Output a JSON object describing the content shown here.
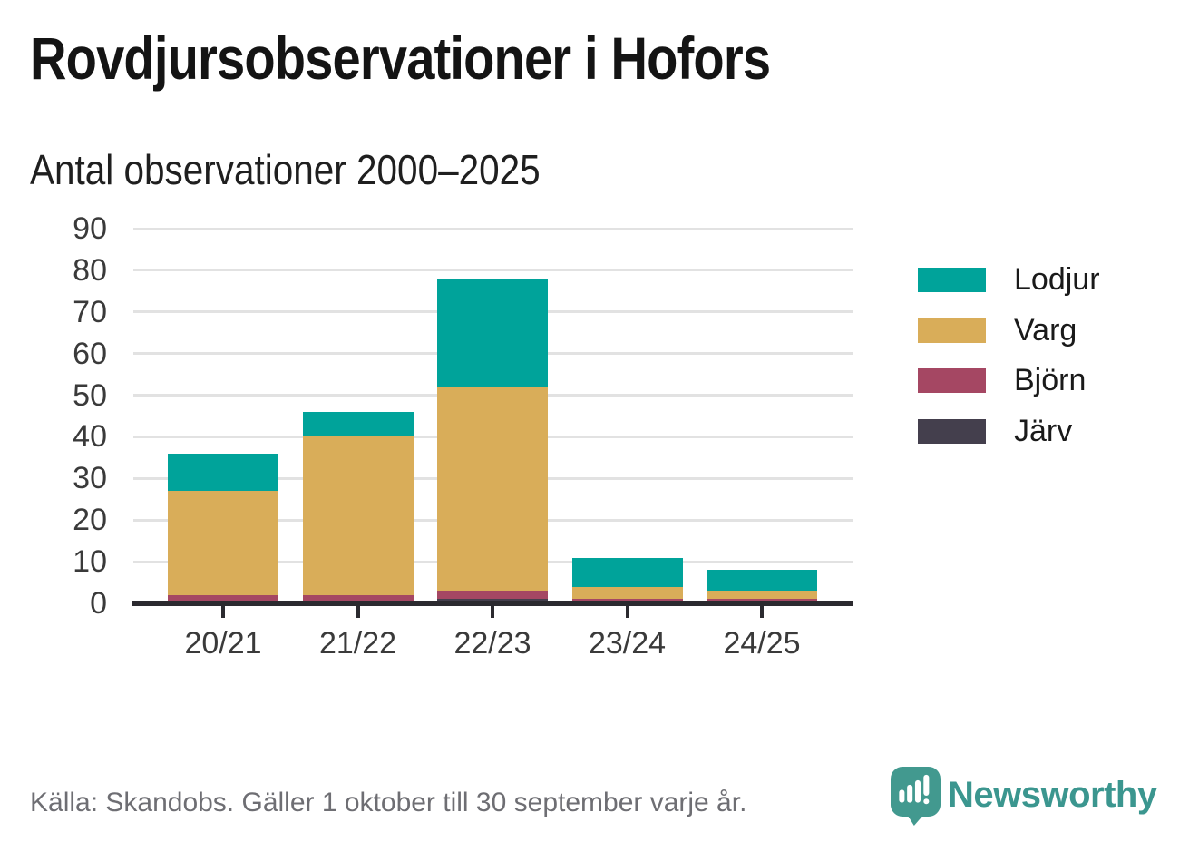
{
  "header": {
    "title": "Rovdjursobservationer i Hofors",
    "subtitle": "Antal observationer 2000–2025"
  },
  "chart_data": {
    "type": "bar",
    "stacked": true,
    "title": "Rovdjursobservationer i Hofors",
    "subtitle": "Antal observationer 2000–2025",
    "categories": [
      "20/21",
      "21/22",
      "22/23",
      "23/24",
      "24/25"
    ],
    "series": [
      {
        "name": "Lodjur",
        "color": "#00a39a",
        "values": [
          9,
          6,
          26,
          7,
          5
        ]
      },
      {
        "name": "Varg",
        "color": "#d9ad59",
        "values": [
          25,
          38,
          49,
          3,
          2
        ]
      },
      {
        "name": "Björn",
        "color": "#a54763",
        "values": [
          2,
          2,
          2,
          1,
          1
        ]
      },
      {
        "name": "Järv",
        "color": "#443f4d",
        "values": [
          0,
          0,
          1,
          0,
          0
        ]
      }
    ],
    "stack_order_bottom_to_top": [
      "Järv",
      "Björn",
      "Varg",
      "Lodjur"
    ],
    "totals": [
      36,
      46,
      78,
      11,
      8
    ],
    "xlabel": "",
    "ylabel": "",
    "ylim": [
      0,
      90
    ],
    "yticks": [
      0,
      10,
      20,
      30,
      40,
      50,
      60,
      70,
      80,
      90
    ],
    "grid": true,
    "legend_position": "right"
  },
  "footer": {
    "source": "Källa: Skandobs. Gäller 1 oktober till 30 september varje år.",
    "brand": "Newsworthy"
  },
  "colors": {
    "axis": "#2b2a2f",
    "gridline": "#e2e2e2",
    "title_text": "#141414",
    "axis_text": "#3a3a3a",
    "source_text": "#6e6e73",
    "brand_teal": "#3b968f",
    "icon_teal": "#42998f"
  }
}
